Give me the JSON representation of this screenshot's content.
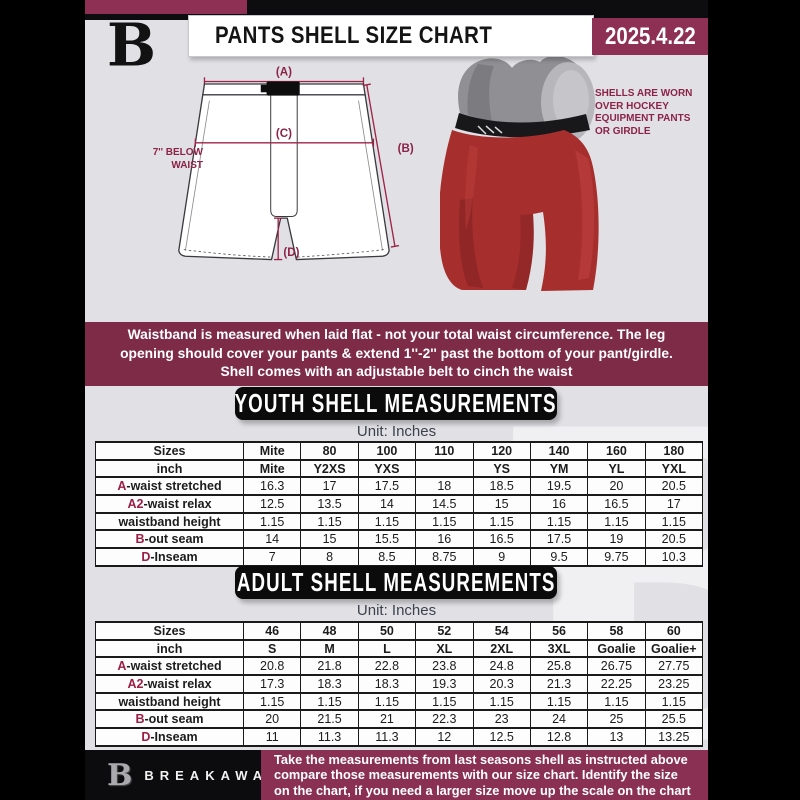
{
  "colors": {
    "accent_maroon": "#8d3054",
    "info_banner_maroon": "#7e2b48",
    "footer_maroon": "#8a3052",
    "diagram_line_crimson": "#9e2246",
    "heading_black": "#0b0b0c",
    "page_gray": "#e1e1e5"
  },
  "header": {
    "logo_letter": "B",
    "title": "PANTS SHELL SIZE CHART",
    "date": "2025.4.22"
  },
  "diagram": {
    "label_a": "(A)",
    "label_b": "(B)",
    "label_c": "(C)",
    "label_d": "(D)",
    "below_waist_line1": "7'' BELOW",
    "below_waist_line2": "WAIST"
  },
  "photo_note": {
    "lines": [
      "SHELLS ARE WORN",
      "OVER HOCKEY",
      "EQUIPMENT PANTS",
      "OR GIRDLE"
    ]
  },
  "info_banner": {
    "lines": [
      "Waistband is measured when laid flat - not your total waist circumference. The leg",
      "opening should cover your pants & extend 1''-2'' past the bottom of your pant/girdle.",
      "Shell comes with an adjustable belt to cinch the waist"
    ]
  },
  "sections": [
    {
      "title": "YOUTH SHELL MEASUREMENTS",
      "unit_label": "Unit: Inches",
      "rows": [
        {
          "header": true,
          "prefix": "",
          "label": "Sizes",
          "values": [
            "Mite",
            "80",
            "100",
            "110",
            "120",
            "140",
            "160",
            "180"
          ]
        },
        {
          "header": true,
          "prefix": "",
          "label": "inch",
          "values": [
            "Mite",
            "Y2XS",
            "YXS",
            "",
            "YS",
            "YM",
            "YL",
            "YXL"
          ]
        },
        {
          "header": false,
          "prefix": "A",
          "label": "-waist stretched",
          "values": [
            "16.3",
            "17",
            "17.5",
            "18",
            "18.5",
            "19.5",
            "20",
            "20.5"
          ]
        },
        {
          "header": false,
          "prefix": "A2",
          "label": "-waist relax",
          "values": [
            "12.5",
            "13.5",
            "14",
            "14.5",
            "15",
            "16",
            "16.5",
            "17"
          ]
        },
        {
          "header": false,
          "prefix": "",
          "label": "waistband height",
          "values": [
            "1.15",
            "1.15",
            "1.15",
            "1.15",
            "1.15",
            "1.15",
            "1.15",
            "1.15"
          ]
        },
        {
          "header": false,
          "prefix": "B",
          "label": "-out seam",
          "values": [
            "14",
            "15",
            "15.5",
            "16",
            "16.5",
            "17.5",
            "19",
            "20.5"
          ]
        },
        {
          "header": false,
          "prefix": "D",
          "label": "-Inseam",
          "values": [
            "7",
            "8",
            "8.5",
            "8.75",
            "9",
            "9.5",
            "9.75",
            "10.3"
          ]
        }
      ]
    },
    {
      "title": "ADULT SHELL MEASUREMENTS",
      "unit_label": "Unit: Inches",
      "rows": [
        {
          "header": true,
          "prefix": "",
          "label": "Sizes",
          "values": [
            "46",
            "48",
            "50",
            "52",
            "54",
            "56",
            "58",
            "60"
          ]
        },
        {
          "header": true,
          "prefix": "",
          "label": "inch",
          "values": [
            "S",
            "M",
            "L",
            "XL",
            "2XL",
            "3XL",
            "Goalie",
            "Goalie+"
          ]
        },
        {
          "header": false,
          "prefix": "A",
          "label": "-waist stretched",
          "values": [
            "20.8",
            "21.8",
            "22.8",
            "23.8",
            "24.8",
            "25.8",
            "26.75",
            "27.75"
          ]
        },
        {
          "header": false,
          "prefix": "A2",
          "label": "-waist relax",
          "values": [
            "17.3",
            "18.3",
            "18.3",
            "19.3",
            "20.3",
            "21.3",
            "22.25",
            "23.25"
          ]
        },
        {
          "header": false,
          "prefix": "",
          "label": "waistband height",
          "values": [
            "1.15",
            "1.15",
            "1.15",
            "1.15",
            "1.15",
            "1.15",
            "1.15",
            "1.15"
          ]
        },
        {
          "header": false,
          "prefix": "B",
          "label": "-out seam",
          "values": [
            "20",
            "21.5",
            "21",
            "22.3",
            "23",
            "24",
            "25",
            "25.5"
          ]
        },
        {
          "header": false,
          "prefix": "D",
          "label": "-Inseam",
          "values": [
            "11",
            "11.3",
            "11.3",
            "12",
            "12.5",
            "12.8",
            "13",
            "13.25"
          ]
        }
      ]
    }
  ],
  "watermark_letter": "B",
  "footer": {
    "logo_letter": "B",
    "brand": "BREAKAWAY",
    "lines": [
      "Take the measurements from last seasons shell as instructed above",
      "compare those measurements  with our size chart. Identify the size",
      "on the chart, if you need a larger size move up the scale on the chart"
    ]
  }
}
